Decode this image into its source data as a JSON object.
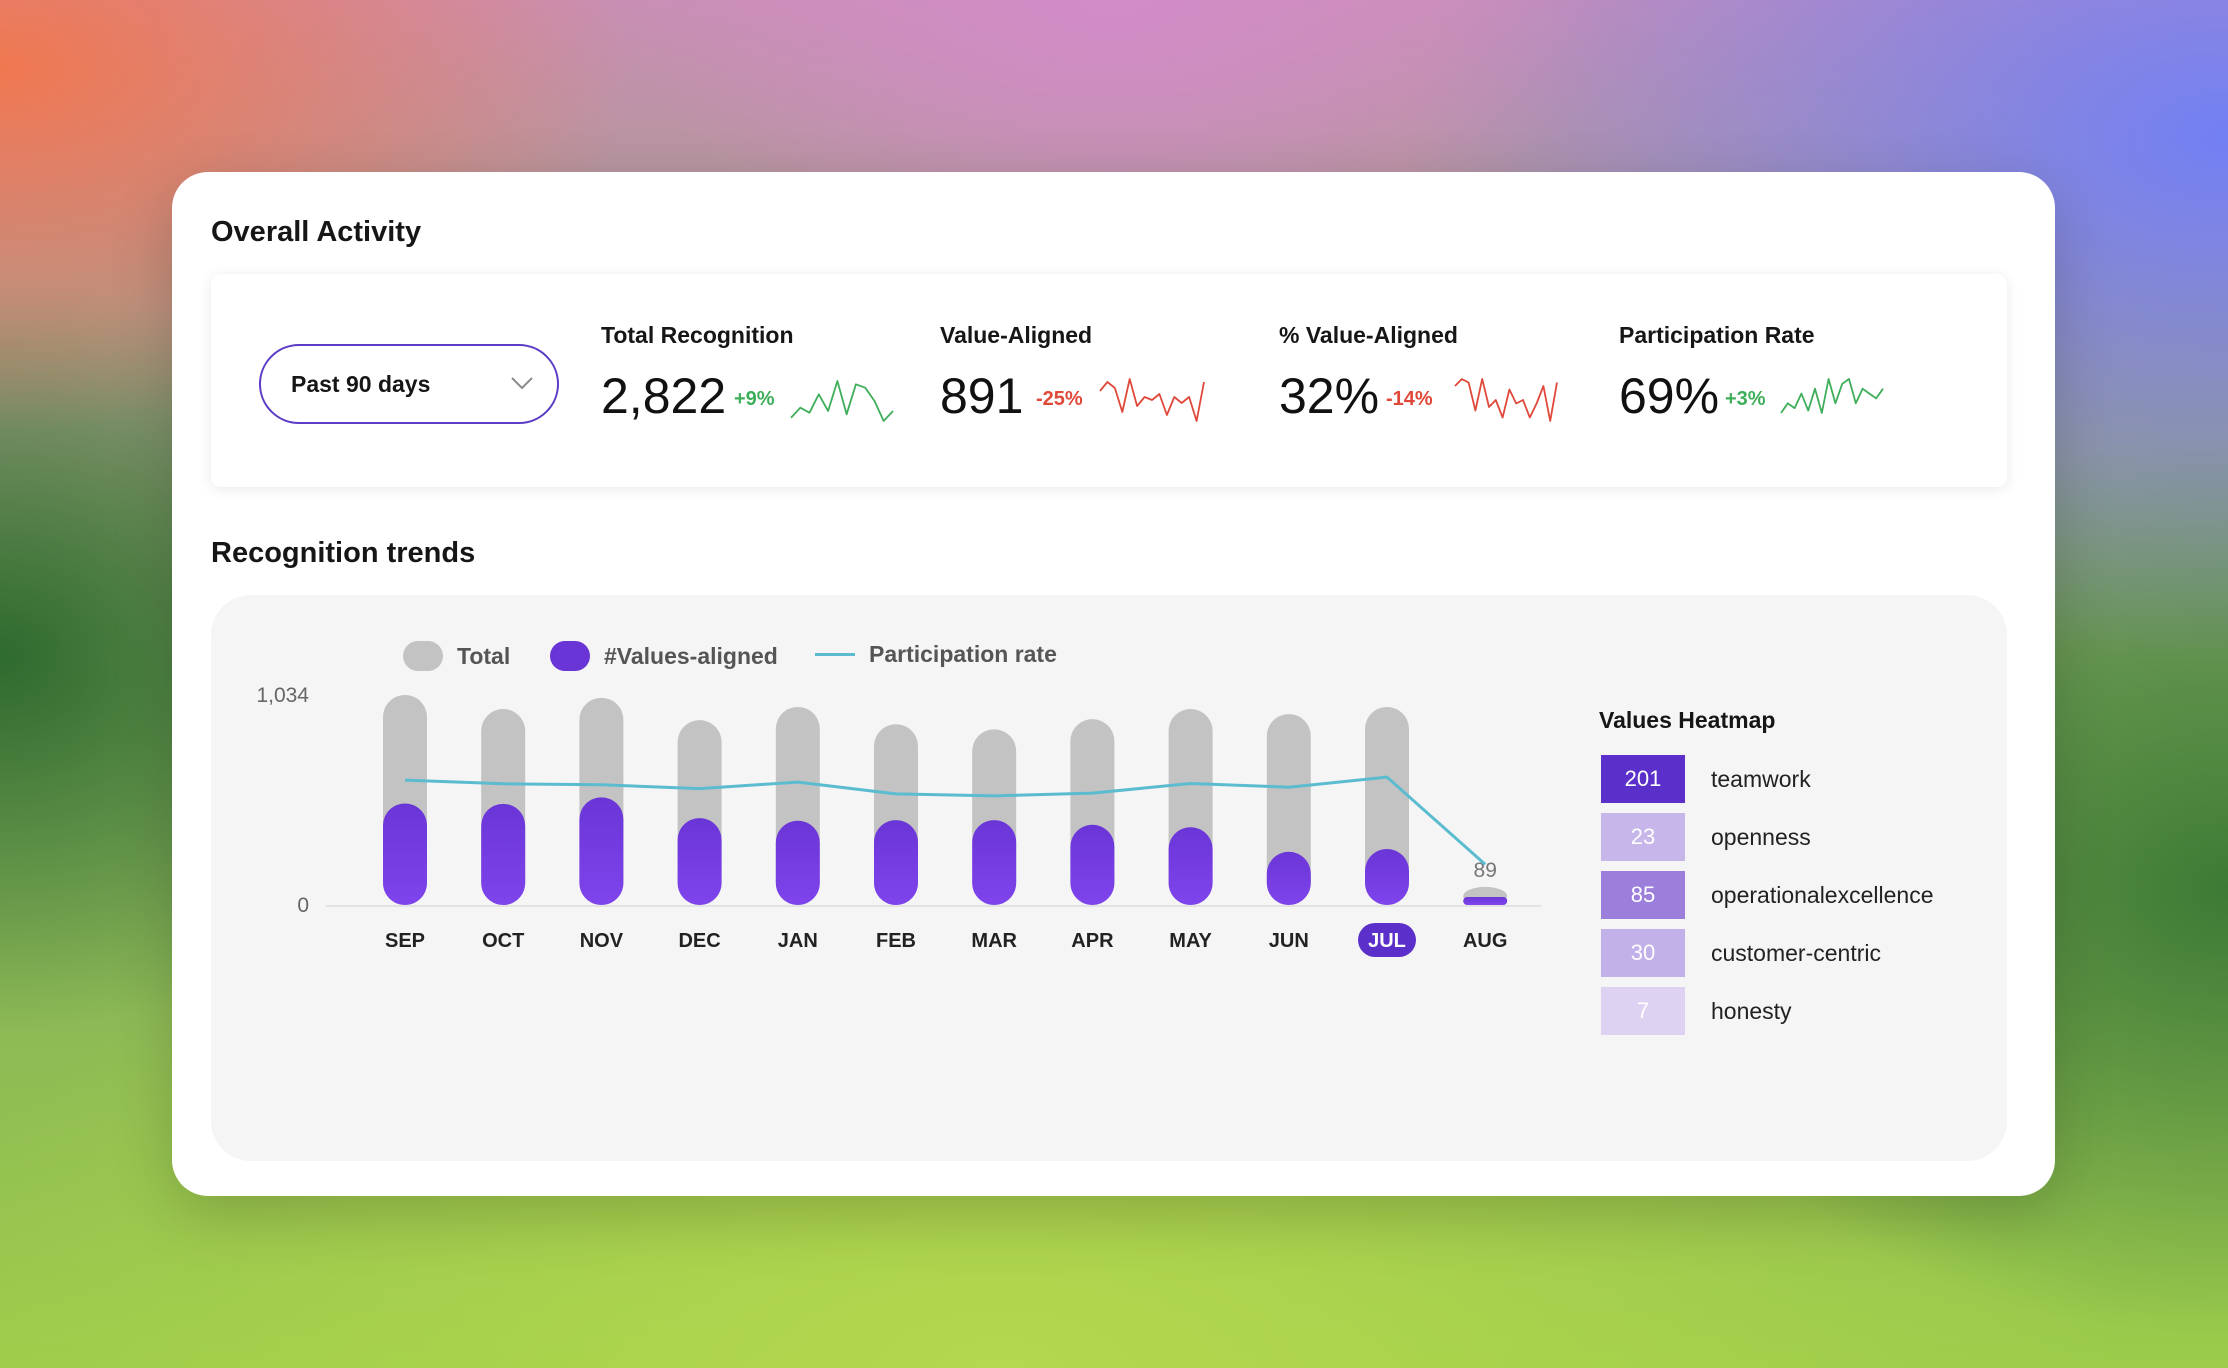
{
  "overall_title": "Overall Activity",
  "range_dropdown": {
    "selected": "Past 90 days"
  },
  "kpis": [
    {
      "label": "Total Recognition",
      "value": "2,822",
      "delta": "+9%",
      "trend": "up",
      "spark": [
        8,
        14,
        11,
        22,
        12,
        30,
        10,
        28,
        26,
        18,
        6,
        12
      ]
    },
    {
      "label": "Value-Aligned",
      "value": "891",
      "delta": "-25%",
      "trend": "down",
      "spark": [
        24,
        30,
        26,
        10,
        32,
        14,
        20,
        18,
        22,
        8,
        20,
        16,
        20,
        4,
        30
      ]
    },
    {
      "label": "% Value-Aligned",
      "value": "32%",
      "delta": "-14%",
      "trend": "down",
      "spark": [
        26,
        30,
        28,
        12,
        30,
        14,
        18,
        8,
        24,
        16,
        18,
        8,
        16,
        26,
        6,
        28
      ]
    },
    {
      "label": "Participation Rate",
      "value": "69%",
      "delta": "+3%",
      "trend": "up",
      "spark": [
        14,
        18,
        16,
        22,
        15,
        24,
        14,
        28,
        18,
        26,
        28,
        18,
        24,
        22,
        20,
        24
      ]
    }
  ],
  "trends_title": "Recognition trends",
  "legend": {
    "total": "Total",
    "values_aligned": "#Values-aligned",
    "participation": "Participation rate"
  },
  "colors": {
    "total": "#c3c3c3",
    "values_aligned": "#7b3fe4",
    "participation": "#5bbcd0",
    "accent": "#5b2fc9"
  },
  "chart_data": {
    "type": "bar",
    "categories": [
      "SEP",
      "OCT",
      "NOV",
      "DEC",
      "JAN",
      "FEB",
      "MAR",
      "APR",
      "MAY",
      "JUN",
      "JUL",
      "AUG"
    ],
    "series": [
      {
        "name": "Total",
        "values": [
          1034,
          965,
          1020,
          910,
          975,
          890,
          865,
          915,
          965,
          940,
          975,
          89
        ]
      },
      {
        "name": "#Values-aligned",
        "values": [
          500,
          498,
          530,
          428,
          415,
          418,
          418,
          395,
          383,
          262,
          276,
          30
        ]
      },
      {
        "name": "Participation rate",
        "values": [
          615,
          597,
          592,
          573,
          605,
          547,
          537,
          551,
          598,
          580,
          630,
          200
        ]
      }
    ],
    "ylim": [
      0,
      1034
    ],
    "y_ticks": [
      "0",
      "1,034"
    ],
    "highlighted_category": "JUL",
    "point_label": {
      "category": "AUG",
      "text": "89"
    }
  },
  "heatmap": {
    "title": "Values Heatmap",
    "items": [
      {
        "count": "201",
        "label": "teamwork",
        "color": "#5b2fc9"
      },
      {
        "count": "23",
        "label": "openness",
        "color": "#c6b6ea"
      },
      {
        "count": "85",
        "label": "operationalexcellence",
        "color": "#9c7edb"
      },
      {
        "count": "30",
        "label": "customer-centric",
        "color": "#c2b1e8"
      },
      {
        "count": "7",
        "label": "honesty",
        "color": "#ddd2f2"
      }
    ]
  }
}
